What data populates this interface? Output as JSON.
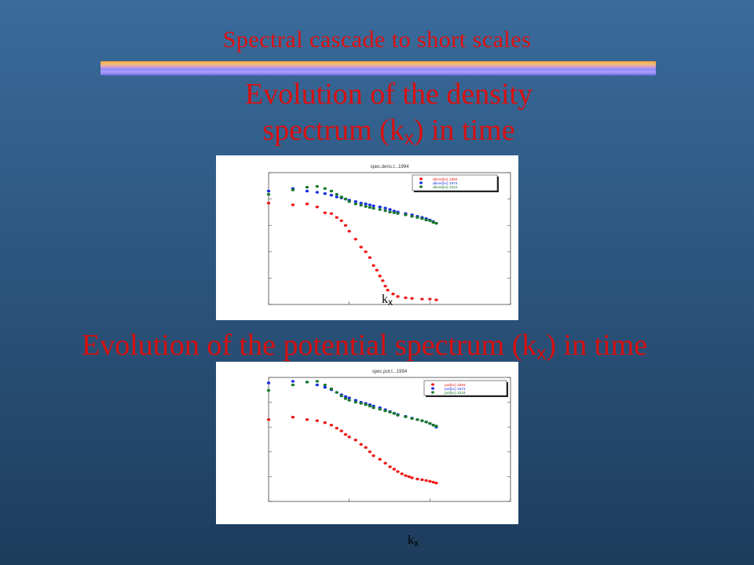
{
  "slide": {
    "title": "Spectral cascade to short scales",
    "heading1_line1": "Evolution of the density",
    "heading1_line2_pre": "spectrum (k",
    "heading1_sub": "x",
    "heading1_line2_post": ") in time",
    "heading2_pre": "Evolution of the potential spectrum (k",
    "heading2_sub": "x",
    "heading2_post": ") in time",
    "kx_main": "k",
    "kx_sub": "x"
  },
  "colors": {
    "title": "#e01010",
    "series_red": "#ee1a1a",
    "series_blue": "#1a2fe0",
    "series_green": "#1a7a2a",
    "rule_top": "#f0a040",
    "rule_bottom": "#6f6fe0"
  },
  "chart_data": [
    {
      "type": "scatter",
      "title": "spec.dens.t...1994",
      "legend_position": "top-right",
      "xscale": "log",
      "yscale": "log",
      "xlim": [
        1,
        1000
      ],
      "ylim": [
        1e-06,
        0.1
      ],
      "series": [
        {
          "name": "dkms(kx) 1994",
          "color": "#ee1a1a",
          "x": [
            1,
            2,
            3,
            4,
            5,
            6,
            7,
            8,
            9,
            10,
            12,
            14,
            16,
            18,
            20,
            22,
            24,
            26,
            28,
            30,
            35,
            40,
            50,
            60,
            80,
            100,
            120
          ],
          "y": [
            0.007,
            0.006,
            0.0065,
            0.005,
            0.003,
            0.0028,
            0.002,
            0.0015,
            0.001,
            0.0006,
            0.0003,
            0.00015,
            0.0001,
            6e-05,
            3e-05,
            2e-05,
            1.2e-05,
            8e-06,
            5e-06,
            3.5e-06,
            2.5e-06,
            2e-06,
            1.8e-06,
            1.7e-06,
            1.6e-06,
            1.6e-06,
            1.5e-06
          ]
        },
        {
          "name": "dkms(kx) 1974",
          "color": "#1a2fe0",
          "x": [
            1,
            2,
            3,
            4,
            5,
            6,
            7,
            8,
            9,
            10,
            12,
            14,
            16,
            18,
            20,
            24,
            28,
            32,
            36,
            40,
            50,
            60,
            70,
            80,
            90,
            100,
            110,
            120
          ],
          "y": [
            0.02,
            0.025,
            0.02,
            0.018,
            0.016,
            0.014,
            0.012,
            0.011,
            0.01,
            0.009,
            0.008,
            0.007,
            0.0065,
            0.006,
            0.0055,
            0.005,
            0.0045,
            0.004,
            0.0035,
            0.0032,
            0.0028,
            0.0025,
            0.0022,
            0.002,
            0.0018,
            0.0016,
            0.0014,
            0.0012
          ]
        },
        {
          "name": "dkms(kx) 1024",
          "color": "#1a7a2a",
          "x": [
            1,
            2,
            3,
            4,
            5,
            6,
            7,
            8,
            9,
            10,
            12,
            14,
            16,
            18,
            20,
            24,
            28,
            32,
            36,
            40,
            50,
            60,
            70,
            80,
            90,
            100,
            110,
            120
          ],
          "y": [
            0.015,
            0.022,
            0.028,
            0.03,
            0.025,
            0.02,
            0.015,
            0.012,
            0.01,
            0.008,
            0.0065,
            0.0058,
            0.0052,
            0.0048,
            0.0044,
            0.004,
            0.0036,
            0.0032,
            0.003,
            0.0028,
            0.0025,
            0.0022,
            0.002,
            0.0018,
            0.0016,
            0.0015,
            0.0013,
            0.0012
          ]
        }
      ]
    },
    {
      "type": "scatter",
      "title": "spec.pot.t...1994",
      "legend_position": "top-right",
      "xscale": "log",
      "yscale": "log",
      "xlim": [
        1,
        1000
      ],
      "ylim": [
        1e-06,
        0.1
      ],
      "series": [
        {
          "name": "pot(kx) 1994",
          "color": "#ee1a1a",
          "x": [
            1,
            2,
            3,
            4,
            5,
            6,
            7,
            8,
            9,
            10,
            12,
            14,
            16,
            18,
            20,
            24,
            28,
            32,
            36,
            40,
            45,
            50,
            55,
            60,
            70,
            80,
            90,
            100,
            110,
            120
          ],
          "y": [
            0.002,
            0.0025,
            0.002,
            0.0018,
            0.0015,
            0.0012,
            0.0009,
            0.0007,
            0.0005,
            0.0004,
            0.0003,
            0.0002,
            0.00015,
            0.0001,
            7e-05,
            5e-05,
            3.5e-05,
            2.5e-05,
            2e-05,
            1.6e-05,
            1.3e-05,
            1.1e-05,
            1e-05,
            9e-06,
            8e-06,
            7.5e-06,
            7e-06,
            6.5e-06,
            6e-06,
            5.5e-06
          ]
        },
        {
          "name": "pot(kx) 1974",
          "color": "#1a2fe0",
          "x": [
            1,
            2,
            3,
            4,
            5,
            6,
            7,
            8,
            9,
            10,
            12,
            14,
            16,
            18,
            20,
            24,
            28,
            32,
            36,
            40,
            50,
            60,
            70,
            80,
            90,
            100,
            110,
            120
          ],
          "y": [
            0.06,
            0.07,
            0.065,
            0.05,
            0.04,
            0.032,
            0.025,
            0.02,
            0.017,
            0.015,
            0.012,
            0.01,
            0.009,
            0.008,
            0.007,
            0.006,
            0.005,
            0.0042,
            0.0036,
            0.0032,
            0.0027,
            0.0023,
            0.002,
            0.0018,
            0.0016,
            0.0014,
            0.0012,
            0.001
          ]
        },
        {
          "name": "pot(kx) 1024",
          "color": "#1a7a2a",
          "x": [
            1,
            2,
            3,
            4,
            5,
            6,
            7,
            8,
            9,
            10,
            12,
            14,
            16,
            18,
            20,
            24,
            28,
            32,
            36,
            40,
            50,
            60,
            70,
            80,
            90,
            100,
            110,
            120
          ],
          "y": [
            0.03,
            0.05,
            0.065,
            0.07,
            0.05,
            0.035,
            0.025,
            0.018,
            0.014,
            0.012,
            0.01,
            0.009,
            0.008,
            0.007,
            0.006,
            0.0052,
            0.0045,
            0.004,
            0.0035,
            0.003,
            0.0026,
            0.0022,
            0.002,
            0.0018,
            0.0016,
            0.0014,
            0.0012,
            0.0011
          ]
        }
      ]
    }
  ]
}
